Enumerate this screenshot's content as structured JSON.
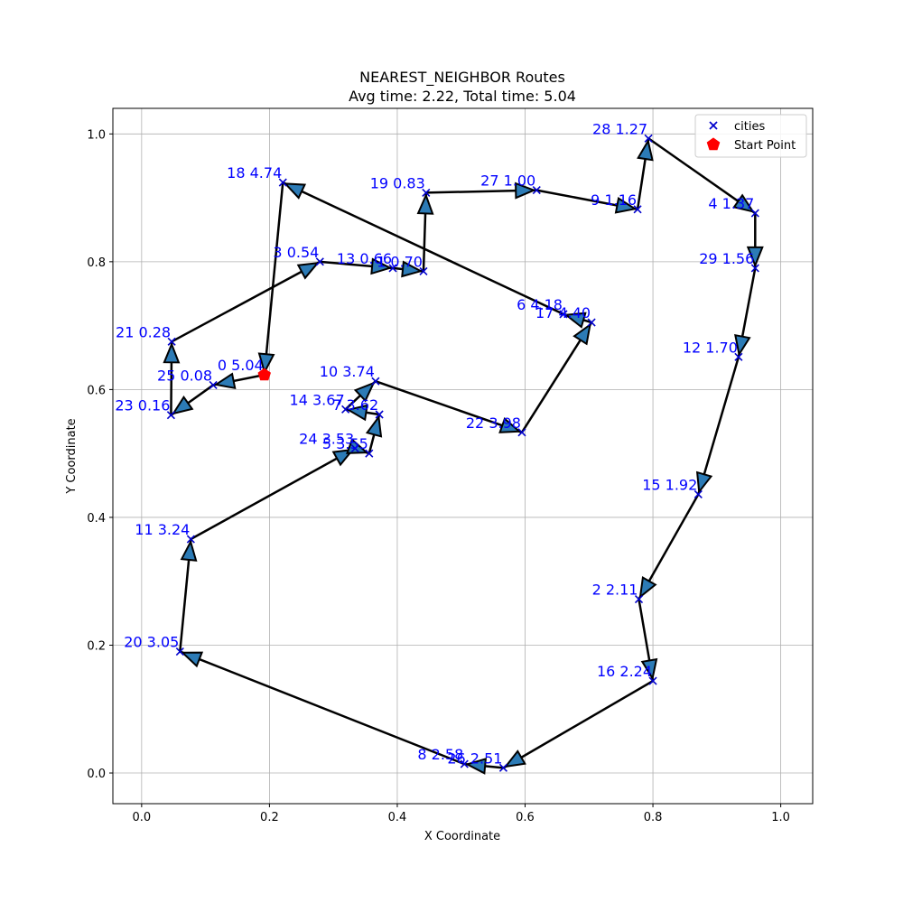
{
  "chart_data": {
    "type": "scatter",
    "title": "NEAREST_NEIGHBOR Routes",
    "subtitle": "Avg time: 2.22, Total time: 5.04",
    "xlabel": "X Coordinate",
    "ylabel": "Y Coordinate",
    "xlim": [
      -0.045,
      1.05
    ],
    "ylim": [
      -0.048,
      1.04
    ],
    "xticks": [
      0.0,
      0.2,
      0.4,
      0.6,
      0.8,
      1.0
    ],
    "yticks": [
      0.0,
      0.2,
      0.4,
      0.6,
      0.8,
      1.0
    ],
    "xtick_labels": [
      "0.0",
      "0.2",
      "0.4",
      "0.6",
      "0.8",
      "1.0"
    ],
    "ytick_labels": [
      "0.0",
      "0.2",
      "0.4",
      "0.6",
      "0.8",
      "1.0"
    ],
    "grid": true,
    "legend_position": "top-right",
    "legend": [
      {
        "label": "cities",
        "marker": "x",
        "color": "#0000cc"
      },
      {
        "label": "Start Point",
        "marker": "pentagon",
        "color": "#ff0000"
      }
    ],
    "colors": {
      "city_marker": "#0000cc",
      "city_label": "#0000ff",
      "start_point": "#ff0000",
      "route_line": "#000000",
      "arrow_fill": "#2c7bb6",
      "grid": "#b0b0b0"
    },
    "start_point": {
      "x": 0.192,
      "y": 0.623
    },
    "cities": [
      {
        "id": 0,
        "time": "5.04",
        "x": 0.192,
        "y": 0.623
      },
      {
        "id": 1,
        "time": "0.70",
        "x": 0.441,
        "y": 0.785
      },
      {
        "id": 2,
        "time": "2.11",
        "x": 0.778,
        "y": 0.272
      },
      {
        "id": 3,
        "time": "0.54",
        "x": 0.279,
        "y": 0.8
      },
      {
        "id": 4,
        "time": "1.37",
        "x": 0.96,
        "y": 0.876
      },
      {
        "id": 5,
        "time": "3.55",
        "x": 0.356,
        "y": 0.5
      },
      {
        "id": 6,
        "time": "4.18",
        "x": 0.66,
        "y": 0.718
      },
      {
        "id": 7,
        "time": "3.62",
        "x": 0.372,
        "y": 0.561
      },
      {
        "id": 8,
        "time": "2.58",
        "x": 0.505,
        "y": 0.014
      },
      {
        "id": 9,
        "time": "1.16",
        "x": 0.776,
        "y": 0.882
      },
      {
        "id": 10,
        "time": "3.74",
        "x": 0.366,
        "y": 0.613
      },
      {
        "id": 11,
        "time": "3.24",
        "x": 0.077,
        "y": 0.366
      },
      {
        "id": 12,
        "time": "1.70",
        "x": 0.934,
        "y": 0.651
      },
      {
        "id": 13,
        "time": "0.66",
        "x": 0.393,
        "y": 0.79
      },
      {
        "id": 14,
        "time": "3.67",
        "x": 0.319,
        "y": 0.569
      },
      {
        "id": 15,
        "time": "1.92",
        "x": 0.871,
        "y": 0.436
      },
      {
        "id": 16,
        "time": "2.24",
        "x": 0.8,
        "y": 0.144
      },
      {
        "id": 17,
        "time": "4.40",
        "x": 0.704,
        "y": 0.705
      },
      {
        "id": 18,
        "time": "4.74",
        "x": 0.221,
        "y": 0.924
      },
      {
        "id": 19,
        "time": "0.83",
        "x": 0.445,
        "y": 0.908
      },
      {
        "id": 20,
        "time": "3.05",
        "x": 0.06,
        "y": 0.19
      },
      {
        "id": 21,
        "time": "0.28",
        "x": 0.047,
        "y": 0.675
      },
      {
        "id": 22,
        "time": "3.98",
        "x": 0.595,
        "y": 0.533
      },
      {
        "id": 23,
        "time": "0.16",
        "x": 0.046,
        "y": 0.56
      },
      {
        "id": 24,
        "time": "3.53",
        "x": 0.334,
        "y": 0.508
      },
      {
        "id": 25,
        "time": "0.08",
        "x": 0.112,
        "y": 0.607
      },
      {
        "id": 26,
        "time": "2.51",
        "x": 0.566,
        "y": 0.008
      },
      {
        "id": 27,
        "time": "1.00",
        "x": 0.618,
        "y": 0.912
      },
      {
        "id": 28,
        "time": "1.27",
        "x": 0.793,
        "y": 0.993
      },
      {
        "id": 29,
        "time": "1.56",
        "x": 0.96,
        "y": 0.79
      }
    ],
    "route": [
      0,
      25,
      23,
      21,
      3,
      13,
      1,
      19,
      27,
      9,
      28,
      4,
      29,
      12,
      15,
      2,
      16,
      26,
      8,
      20,
      11,
      24,
      5,
      7,
      14,
      10,
      22,
      17,
      6,
      18,
      0
    ]
  }
}
